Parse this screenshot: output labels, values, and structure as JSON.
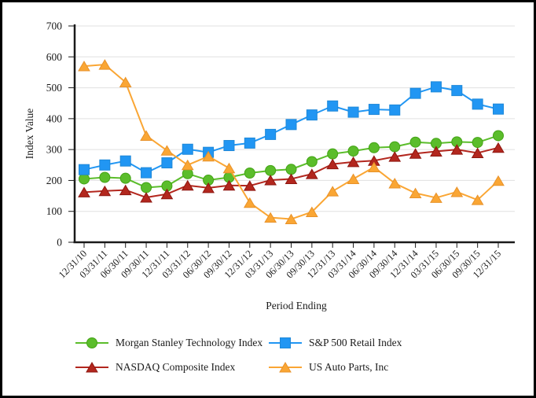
{
  "page": {
    "background": "#FFFFFF",
    "border_color": "#000000",
    "text_color": "#1A1A1A",
    "gridline_color": "#E0E0E0",
    "axis_color": "#1A1A1A"
  },
  "chart_data": {
    "type": "line",
    "title": "",
    "xlabel": "Period Ending",
    "ylabel": "Index Value",
    "ylim": [
      0,
      700
    ],
    "y_ticks": [
      0,
      100,
      200,
      300,
      400,
      500,
      600,
      700
    ],
    "grid": true,
    "legend_position": "bottom",
    "categories": [
      "12/31/10",
      "03/31/11",
      "06/30/11",
      "09/30/11",
      "12/31/11",
      "03/31/12",
      "06/30/12",
      "09/30/12",
      "12/31/12",
      "03/31/13",
      "06/30/13",
      "09/30/13",
      "12/31/13",
      "03/31/14",
      "06/30/14",
      "09/30/14",
      "12/31/14",
      "03/31/15",
      "06/30/15",
      "09/30/15",
      "12/31/15"
    ],
    "series": [
      {
        "name": "Morgan Stanley Technology Index",
        "marker": "circle",
        "color": "#5BBD2B",
        "edge_color": "#43A315",
        "values": [
          205,
          210,
          207,
          177,
          182,
          222,
          201,
          210,
          224,
          232,
          236,
          261,
          286,
          295,
          306,
          309,
          324,
          320,
          325,
          323,
          345
        ]
      },
      {
        "name": "S&P 500 Retail Index",
        "marker": "square",
        "color": "#2196F3",
        "edge_color": "#1E88D8",
        "values": [
          235,
          250,
          263,
          225,
          257,
          301,
          291,
          313,
          321,
          349,
          381,
          412,
          441,
          421,
          430,
          428,
          482,
          503,
          491,
          447,
          431
        ]
      },
      {
        "name": "NASDAQ Composite Index",
        "marker": "triangle",
        "color": "#B3271E",
        "edge_color": "#8E1710",
        "values": [
          162,
          166,
          169,
          145,
          156,
          184,
          176,
          184,
          183,
          201,
          205,
          221,
          253,
          260,
          264,
          277,
          287,
          294,
          300,
          289,
          306
        ]
      },
      {
        "name": "US Auto Parts, Inc",
        "marker": "triangle",
        "color": "#FAA634",
        "edge_color": "#E8922A",
        "values": [
          570,
          575,
          518,
          345,
          297,
          250,
          278,
          240,
          128,
          80,
          75,
          98,
          165,
          205,
          243,
          191,
          159,
          144,
          163,
          137,
          199
        ]
      }
    ]
  }
}
